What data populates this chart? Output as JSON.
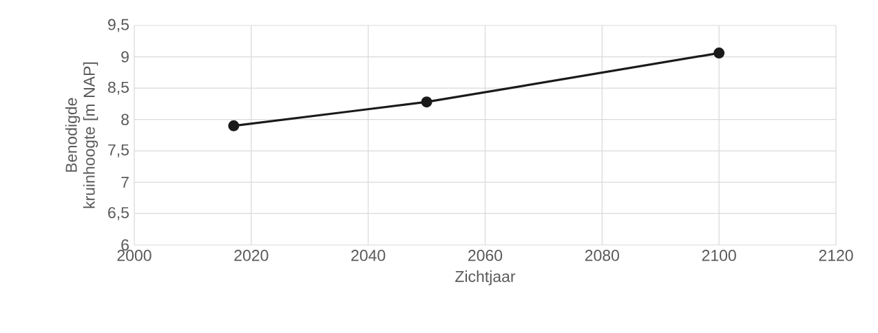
{
  "chart_data": {
    "type": "line",
    "xlabel": "Zichtjaar",
    "ylabel": "Benodigde kruinhoogte [m NAP]",
    "x": [
      2017,
      2050,
      2100
    ],
    "series": [
      {
        "color": "#1a1a1a",
        "values": [
          7.9,
          8.28,
          9.06
        ]
      }
    ],
    "xlim": [
      2000,
      2120
    ],
    "xticks": [
      2000,
      2020,
      2040,
      2060,
      2080,
      2100,
      2120
    ],
    "ylim": [
      6,
      9.5
    ],
    "yticks": [
      {
        "value": 6,
        "label": "6"
      },
      {
        "value": 6.5,
        "label": "6,5"
      },
      {
        "value": 7,
        "label": "7"
      },
      {
        "value": 7.5,
        "label": "7,5"
      },
      {
        "value": 8,
        "label": "8"
      },
      {
        "value": 8.5,
        "label": "8,5"
      },
      {
        "value": 9,
        "label": "9"
      },
      {
        "value": 9.5,
        "label": "9,5"
      }
    ],
    "grid": true,
    "marker": "circle",
    "line_style": "solid"
  }
}
